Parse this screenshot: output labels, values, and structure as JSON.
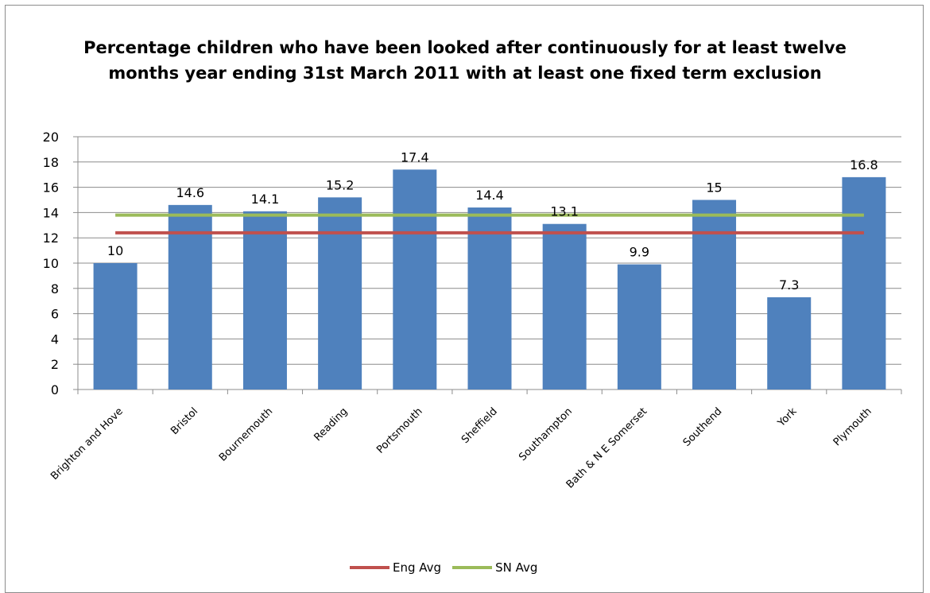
{
  "chart_data": {
    "type": "bar",
    "title": "Percentage children who have been looked after continuously for at least twelve months year ending 31st March 2011  with at least one fixed term exclusion",
    "categories": [
      "Brighton and Hove",
      "Bristol",
      "Bournemouth",
      "Reading",
      "Portsmouth",
      "Sheffield",
      "Southampton",
      "Bath & N E Somerset",
      "Southend",
      "York",
      "Plymouth"
    ],
    "values": [
      10,
      14.6,
      14.1,
      15.2,
      17.4,
      14.4,
      13.1,
      9.9,
      15,
      7.3,
      16.8
    ],
    "value_labels": [
      "10",
      "14.6",
      "14.1",
      "15.2",
      "17.4",
      "14.4",
      "13.1",
      "9.9",
      "15",
      "7.3",
      "16.8"
    ],
    "lines": [
      {
        "name": "Eng Avg",
        "value": 12.4,
        "color": "#c0504d"
      },
      {
        "name": "SN Avg",
        "value": 13.8,
        "color": "#9bbb59"
      }
    ],
    "bar_color": "#4f81bd",
    "ylim": [
      0,
      20
    ],
    "yticks": [
      "0",
      "2",
      "4",
      "6",
      "8",
      "10",
      "12",
      "14",
      "16",
      "18",
      "20"
    ],
    "xlabel": "",
    "ylabel": "",
    "grid": true,
    "legend_position": "bottom"
  }
}
